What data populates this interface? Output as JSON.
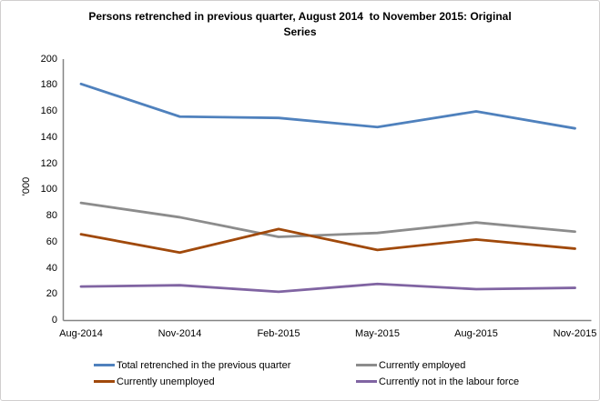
{
  "window": {
    "background": "#FFFFFF",
    "border_color": "#D0CECE"
  },
  "chart_data": {
    "type": "line",
    "title_lines": [
      "Persons retrenched in previous quarter, August 2014  to November 2015: Original",
      "Series"
    ],
    "ylabel": "'000",
    "categories": [
      "Aug-2014",
      "Nov-2014",
      "Feb-2015",
      "May-2015",
      "Aug-2015",
      "Nov-2015"
    ],
    "yticks": [
      0,
      20,
      40,
      60,
      80,
      100,
      120,
      140,
      160,
      180,
      200
    ],
    "ylim": [
      0,
      200
    ],
    "grid": false,
    "legend_position": "bottom",
    "axis_color": "#848484",
    "text_color": "#000000",
    "series": [
      {
        "name": "Total retrenched in the previous quarter",
        "color": "#4F81BD",
        "values": [
          181,
          156,
          155,
          148,
          160,
          147
        ]
      },
      {
        "name": "Currently employed",
        "color": "#8C8C8C",
        "values": [
          90,
          79,
          64,
          67,
          75,
          68
        ]
      },
      {
        "name": "Currently unemployed",
        "color": "#A0490B",
        "values": [
          66,
          52,
          70,
          54,
          62,
          55
        ]
      },
      {
        "name": "Currently not in the labour force",
        "color": "#8064A2",
        "values": [
          26,
          27,
          22,
          28,
          24,
          25
        ]
      }
    ]
  }
}
